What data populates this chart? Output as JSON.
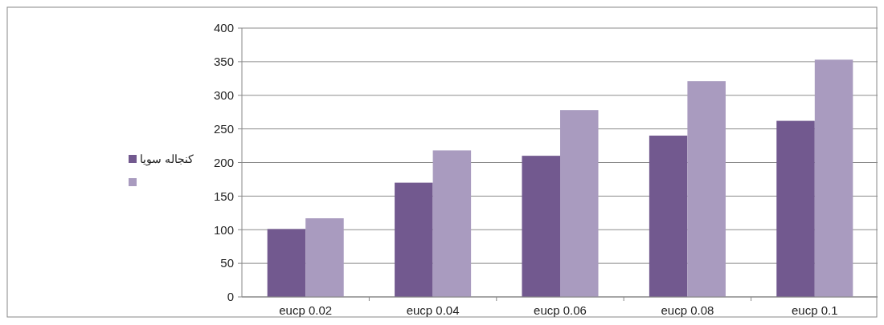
{
  "chart_data": {
    "type": "bar",
    "categories": [
      "eucp 0.02",
      "eucp 0.04",
      "eucp 0.06",
      "eucp 0.08",
      "eucp 0.1"
    ],
    "series": [
      {
        "name": "کنجاله سویا",
        "color": "#72598f",
        "values": [
          101,
          170,
          210,
          240,
          262
        ]
      },
      {
        "color": "#a99bbf",
        "values": [
          117,
          218,
          278,
          321,
          353
        ]
      }
    ],
    "ylim": [
      0,
      400
    ],
    "yticks": [
      0,
      50,
      100,
      150,
      200,
      250,
      300,
      350,
      400
    ],
    "grid": "y",
    "legend": "left"
  }
}
